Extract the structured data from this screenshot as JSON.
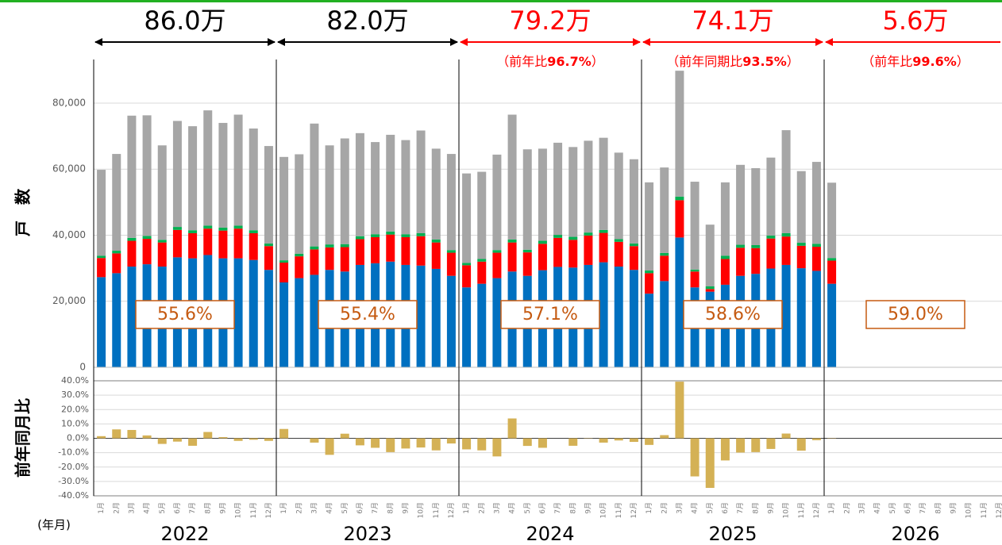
{
  "chart_data": [
    {
      "type": "stacked-bar",
      "y_label": "戸　数",
      "ylim": [
        0,
        92000
      ],
      "yticks": [
        0,
        {
          "value": 20000,
          "label": "20,000"
        },
        {
          "value": 40000,
          "label": "40,000"
        },
        {
          "value": 60000,
          "label": "60,000"
        },
        {
          "value": 80000,
          "label": "80,000"
        }
      ],
      "grid": true,
      "series": [
        {
          "color": "#0070c0",
          "values": [
            27300,
            28500,
            30500,
            31200,
            30500,
            33300,
            33000,
            34000,
            33000,
            33000,
            32500,
            29500,
            25700,
            27000,
            28000,
            29500,
            29000,
            31000,
            31500,
            32000,
            31000,
            30800,
            29800,
            27700,
            24200,
            25300,
            27000,
            29000,
            27700,
            29400,
            30400,
            30200,
            31000,
            31800,
            30500,
            29500,
            22300,
            26100,
            39300,
            24200,
            22900,
            25000,
            27700,
            28300,
            29900,
            31000,
            30000,
            29200,
            25300,
            null,
            null,
            null,
            null,
            null,
            null,
            null,
            null,
            null,
            null,
            null
          ]
        },
        {
          "color": "#ff0000",
          "values": [
            5800,
            6000,
            7800,
            7700,
            7300,
            8300,
            7600,
            8000,
            8400,
            9000,
            8100,
            7200,
            6000,
            6600,
            7700,
            6800,
            7400,
            7800,
            7900,
            8200,
            8400,
            8900,
            8000,
            7000,
            6700,
            6700,
            7700,
            8800,
            7100,
            8000,
            8800,
            8400,
            8900,
            8900,
            7500,
            7200,
            6200,
            7700,
            11300,
            4800,
            800,
            7800,
            8500,
            7800,
            9100,
            8600,
            6800,
            7300,
            7000,
            null,
            null,
            null,
            null,
            null,
            null,
            null,
            null,
            null,
            null,
            null
          ]
        },
        {
          "color": "#00b050",
          "values": [
            700,
            800,
            900,
            900,
            800,
            900,
            900,
            900,
            900,
            900,
            900,
            800,
            700,
            800,
            900,
            900,
            900,
            900,
            900,
            900,
            900,
            900,
            900,
            800,
            700,
            800,
            800,
            900,
            800,
            900,
            900,
            900,
            900,
            900,
            800,
            800,
            800,
            800,
            1100,
            600,
            800,
            1000,
            900,
            900,
            900,
            1000,
            900,
            900,
            800,
            null,
            null,
            null,
            null,
            null,
            null,
            null,
            null,
            null,
            null,
            null
          ]
        },
        {
          "color": "#a6a6a6",
          "values": [
            26000,
            29300,
            37000,
            36500,
            28600,
            32100,
            31500,
            34900,
            31700,
            33600,
            30800,
            29500,
            31300,
            30100,
            37200,
            30000,
            32000,
            31200,
            27900,
            29300,
            28500,
            31100,
            27500,
            29100,
            27100,
            26400,
            28900,
            37800,
            30400,
            27900,
            27900,
            27200,
            27800,
            27900,
            26200,
            25500,
            26700,
            25900,
            38100,
            26600,
            18700,
            22200,
            24200,
            23300,
            23600,
            31200,
            21700,
            24800,
            22800,
            null,
            null,
            null,
            null,
            null,
            null,
            null,
            null,
            null,
            null,
            null
          ]
        }
      ],
      "period_totals": [
        {
          "label": "86.0万",
          "color": "#000000"
        },
        {
          "label": "82.0万",
          "color": "#000000"
        },
        {
          "label": "79.2万",
          "color": "#ff0000",
          "note": {
            "pre": "（前年比",
            "bold": "96.7%",
            "post": "）"
          }
        },
        {
          "label": "74.1万",
          "color": "#ff0000",
          "note": {
            "pre": "（前年同期比",
            "bold": "93.5%",
            "post": "）"
          }
        },
        {
          "label": "5.6万",
          "color": "#ff0000",
          "note": {
            "pre": "（前年比",
            "bold": "99.6%",
            "post": "）"
          }
        }
      ],
      "share_labels": [
        "55.6%",
        "55.4%",
        "57.1%",
        "58.6%",
        "59.0%"
      ],
      "share_color": "#c55a11"
    },
    {
      "type": "bar",
      "y_label": "前年同月比",
      "x_label": "(年月)",
      "color": "#d4b155",
      "ylim": [
        -40,
        40
      ],
      "yticks": [
        {
          "value": -40,
          "label": "-40.0%"
        },
        {
          "value": -30,
          "label": "-30.0%"
        },
        {
          "value": -20,
          "label": "-20.0%"
        },
        {
          "value": -10,
          "label": "-10.0%"
        },
        {
          "value": 0,
          "label": "0.0%"
        },
        {
          "value": 10,
          "label": "10.0%"
        },
        {
          "value": 20,
          "label": "20.0%"
        },
        {
          "value": 30,
          "label": "30.0%"
        },
        {
          "value": 40,
          "label": "40.0%"
        }
      ],
      "grid": true,
      "categories": [
        "1月",
        "2月",
        "3月",
        "4月",
        "5月",
        "6月",
        "7月",
        "8月",
        "9月",
        "10月",
        "11月",
        "12月",
        "1月",
        "2月",
        "3月",
        "4月",
        "5月",
        "6月",
        "7月",
        "8月",
        "9月",
        "10月",
        "11月",
        "12月",
        "1月",
        "2月",
        "3月",
        "4月",
        "5月",
        "6月",
        "7月",
        "8月",
        "9月",
        "10月",
        "11月",
        "12月",
        "1月",
        "2月",
        "3月",
        "4月",
        "5月",
        "6月",
        "7月",
        "8月",
        "9月",
        "10月",
        "11月",
        "12月",
        "1月",
        "2月",
        "3月",
        "4月",
        "5月",
        "6月",
        "7月",
        "8月",
        "9月",
        "10月",
        "11月",
        "12月"
      ],
      "years": [
        "2022",
        "2023",
        "2024",
        "2025",
        "2026"
      ],
      "values": [
        1.5,
        6.2,
        5.8,
        2.0,
        -3.9,
        -2.3,
        -5.2,
        4.4,
        0.8,
        -1.8,
        -1.0,
        -1.8,
        6.5,
        0,
        -3.0,
        -11.5,
        3.2,
        -4.9,
        -6.6,
        -9.6,
        -7.1,
        -6.4,
        -8.4,
        -3.6,
        -7.7,
        -8.4,
        -12.6,
        13.8,
        -5.3,
        -6.6,
        0,
        -5.2,
        -0.2,
        -3.0,
        -1.5,
        -2.5,
        -4.6,
        2.2,
        39.4,
        -26.5,
        -34.5,
        -15.4,
        -9.9,
        -9.6,
        -7.4,
        3.3,
        -8.6,
        -1.3,
        -0.2,
        null,
        null,
        null,
        null,
        null,
        null,
        null,
        null,
        null,
        null,
        null
      ]
    }
  ]
}
